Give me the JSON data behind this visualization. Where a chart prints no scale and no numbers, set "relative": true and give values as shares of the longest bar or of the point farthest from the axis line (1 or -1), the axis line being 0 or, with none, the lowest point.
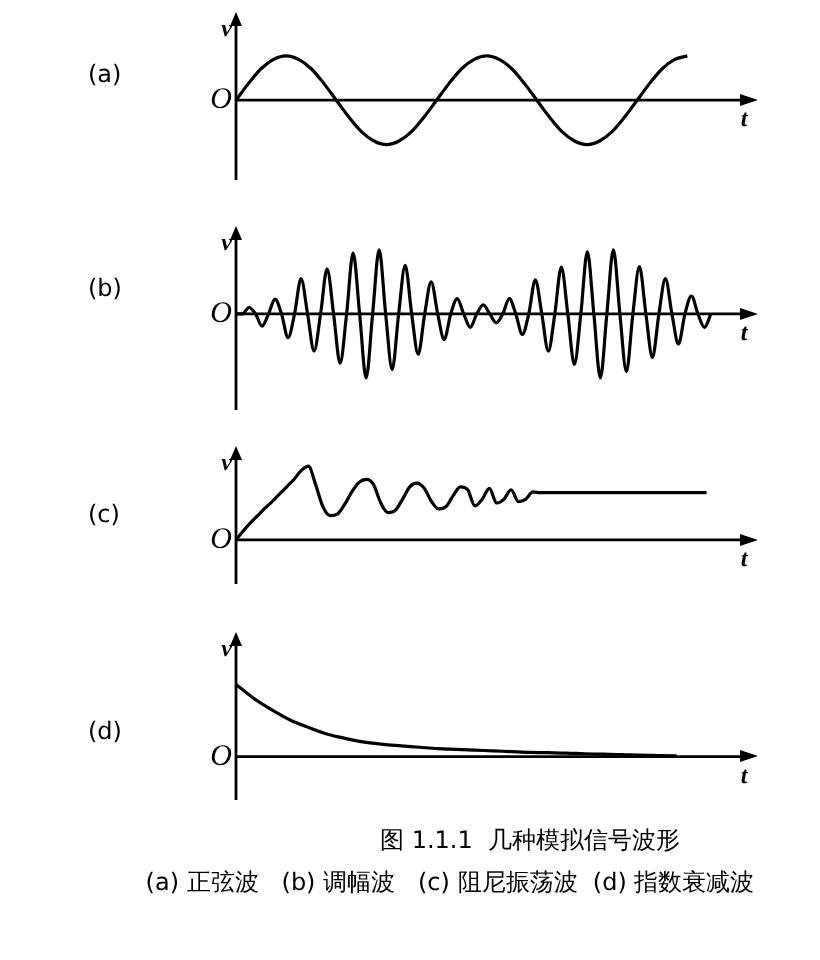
{
  "chart_data": [
    {
      "type": "line",
      "title": "(a)",
      "xlabel": "t",
      "ylabel": "v",
      "annotations": [
        "O"
      ],
      "relative": true,
      "color": "#000000",
      "categories": [
        null,
        null,
        null,
        null,
        null,
        null,
        null,
        null,
        null,
        null,
        null,
        null,
        null,
        null,
        null,
        null,
        null,
        null,
        null,
        null,
        null,
        null,
        null,
        null,
        null,
        null,
        null,
        null,
        null,
        null,
        null,
        null,
        null,
        null,
        null,
        null,
        null,
        null,
        null,
        null,
        null,
        null
      ],
      "values": [
        0,
        0.38,
        0.71,
        0.92,
        1,
        0.92,
        0.71,
        0.38,
        0,
        -0.38,
        -0.71,
        -0.92,
        -1,
        -0.92,
        -0.71,
        -0.38,
        0,
        0.38,
        0.71,
        0.92,
        1,
        0.92,
        0.71,
        0.38,
        0,
        -0.38,
        -0.71,
        -0.92,
        -1,
        -0.92,
        -0.71,
        -0.38,
        0,
        0.38,
        0.71,
        0.92,
        1,
        null,
        null,
        null,
        null,
        null
      ]
    },
    {
      "type": "line",
      "title": "(b)",
      "xlabel": "t",
      "ylabel": "v",
      "annotations": [
        "O"
      ],
      "relative": true,
      "color": "#000000",
      "categories": [
        null,
        null,
        null,
        null,
        null,
        null,
        null,
        null,
        null,
        null,
        null,
        null,
        null,
        null,
        null,
        null,
        null,
        null,
        null,
        null,
        null,
        null,
        null,
        null,
        null,
        null,
        null,
        null,
        null,
        null,
        null,
        null,
        null,
        null,
        null,
        null,
        null,
        null,
        null,
        null,
        null,
        null,
        null,
        null,
        null,
        null,
        null,
        null,
        null,
        null,
        null,
        null,
        null,
        null,
        null,
        null,
        null,
        null,
        null,
        null,
        null,
        null,
        null,
        null,
        null,
        null,
        null,
        null,
        null,
        null,
        null,
        null,
        null,
        null,
        null,
        null,
        null,
        null,
        null,
        null
      ],
      "values": [
        0,
        0,
        0.1,
        0,
        -0.19,
        0,
        0.23,
        0,
        -0.37,
        0,
        0.55,
        0,
        -0.58,
        0,
        0.7,
        0,
        -0.77,
        0,
        0.95,
        0,
        -1,
        0,
        1,
        0,
        -0.87,
        0,
        0.76,
        0,
        -0.63,
        0,
        0.5,
        0,
        -0.4,
        0,
        0.24,
        0,
        -0.21,
        0,
        0.14,
        0,
        -0.14,
        0,
        0.24,
        0,
        -0.32,
        0,
        0.53,
        0,
        -0.58,
        0,
        0.73,
        0,
        -0.79,
        0,
        0.97,
        0,
        -1,
        0,
        1,
        0,
        -0.9,
        0,
        0.74,
        0,
        -0.68,
        0,
        0.55,
        0,
        -0.47,
        0,
        0.28,
        0,
        -0.21,
        0,
        null,
        null,
        null,
        null,
        null,
        null
      ]
    },
    {
      "type": "line",
      "title": "(c)",
      "xlabel": "t",
      "ylabel": "v",
      "annotations": [
        "O"
      ],
      "relative": true,
      "color": "#000000",
      "categories": [
        null,
        null,
        null,
        null,
        null,
        null,
        null,
        null,
        null,
        null,
        null,
        null,
        null,
        null,
        null,
        null,
        null,
        null,
        null,
        null,
        null,
        null,
        null,
        null,
        null,
        null,
        null,
        null,
        null,
        null,
        null,
        null,
        null,
        null,
        null,
        null,
        null,
        null,
        null,
        null,
        null,
        null,
        null,
        null,
        null,
        null,
        null,
        null,
        null,
        null,
        null,
        null,
        null,
        null,
        null,
        null,
        null,
        null,
        null,
        null,
        null,
        null,
        null,
        null,
        null,
        null,
        null,
        null,
        null,
        null,
        null,
        null
      ],
      "values": [
        0,
        0.12,
        0.23,
        0.33,
        0.43,
        0.52,
        0.62,
        0.72,
        0.82,
        0.94,
        1,
        0.75,
        0.45,
        0.33,
        0.35,
        0.48,
        0.65,
        0.78,
        0.82,
        0.75,
        0.5,
        0.37,
        0.4,
        0.55,
        0.72,
        0.77,
        0.7,
        0.52,
        0.42,
        0.45,
        0.6,
        0.72,
        0.68,
        0.46,
        0.55,
        0.7,
        0.5,
        0.55,
        0.68,
        0.52,
        0.55,
        0.65,
        0.64,
        0.64,
        0.64,
        0.64,
        0.64,
        0.64,
        0.64,
        0.64,
        0.64,
        0.64,
        0.64,
        0.64,
        0.64,
        0.64,
        0.64,
        0.64,
        0.64,
        0.64,
        0.64,
        0.64,
        0.64,
        0.64,
        0.64,
        0.64,
        null,
        null,
        null,
        null,
        null,
        null
      ]
    },
    {
      "type": "line",
      "title": "(d)",
      "xlabel": "t",
      "ylabel": "v",
      "annotations": [
        "O",
        "图 1.1.1  几种模拟信号波形",
        "(a) 正弦波   (b) 调幅波   (c) 阻尼振荡波  (d) 指数衰减波"
      ],
      "relative": true,
      "color": "#000000",
      "categories": [
        null,
        null,
        null,
        null,
        null,
        null,
        null,
        null,
        null,
        null,
        null,
        null,
        null,
        null,
        null,
        null,
        null,
        null,
        null,
        null,
        null,
        null,
        null,
        null,
        null,
        null,
        null,
        null,
        null
      ],
      "values": [
        1,
        0.8,
        0.64,
        0.5,
        0.4,
        0.31,
        0.25,
        0.2,
        0.17,
        0.15,
        0.13,
        0.11,
        0.1,
        0.09,
        0.08,
        0.07,
        0.06,
        0.055,
        0.05,
        0.04,
        0.035,
        0.03,
        0.02,
        0.015,
        0.01,
        null,
        null,
        null,
        null
      ]
    }
  ]
}
